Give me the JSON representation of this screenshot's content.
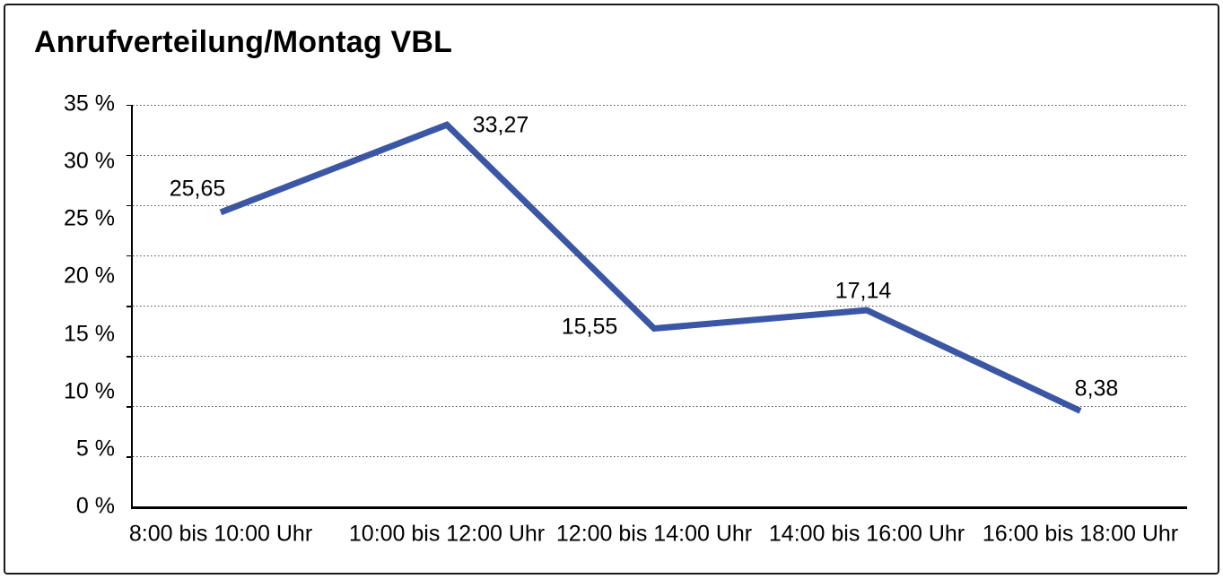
{
  "chart_data": {
    "type": "line",
    "title": "Anrufverteilung/Montag VBL",
    "x_axis": {
      "categories": [
        "8:00 bis 10:00 Uhr",
        "10:00 bis 12:00 Uhr",
        "12:00 bis 14:00 Uhr",
        "14:00 bis 16:00 Uhr",
        "16:00 bis 18:00 Uhr"
      ]
    },
    "y_axis": {
      "min": 0,
      "max": 35,
      "unit": "%",
      "tick_labels": [
        "35 %",
        "30 %",
        "25 %",
        "20 %",
        "15 %",
        "10 %",
        "5 %",
        "0 %"
      ]
    },
    "series": [
      {
        "name": "Anrufverteilung Montag VBL",
        "values": [
          25.65,
          33.27,
          15.55,
          17.14,
          8.38
        ],
        "value_labels": [
          "25,65",
          "33,27",
          "15,55",
          "17,14",
          "8,38"
        ],
        "color": "#3A56A5"
      }
    ],
    "decimal_separator": ",",
    "legend": "none",
    "grid": {
      "horizontal_lines": 9,
      "style": "dotted",
      "color": "#4d4d4d"
    },
    "text_color": "#000000",
    "axis_color": "#000000"
  }
}
